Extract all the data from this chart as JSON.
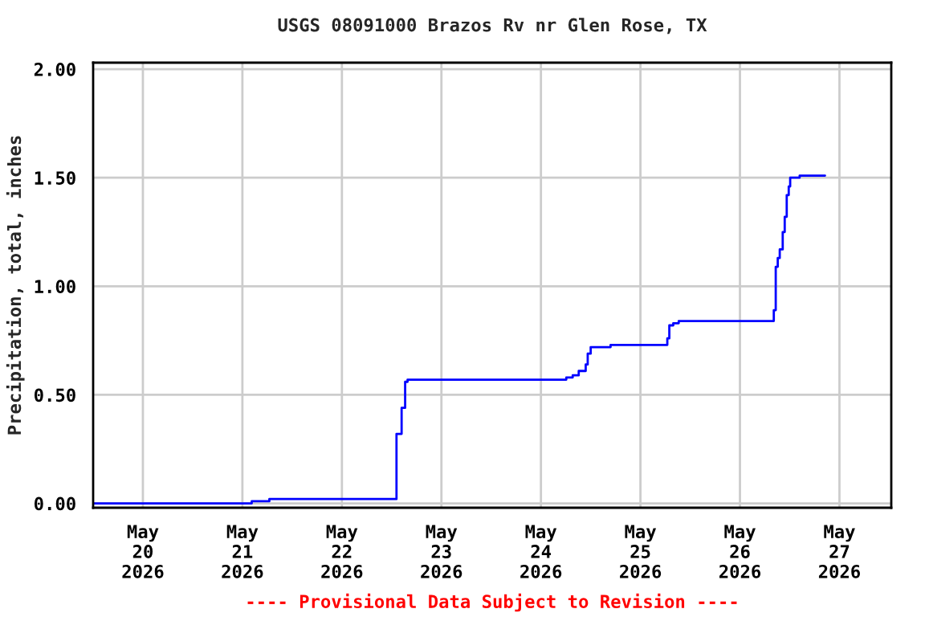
{
  "chart_data": {
    "type": "step",
    "title": "USGS 08091000 Brazos Rv nr Glen Rose, TX",
    "ylabel": "Precipitation, total, inches",
    "annotations": [
      "---- Provisional Data Subject to Revision ----"
    ],
    "x": [
      "2026-05-19T12:00",
      "2026-05-21T02:15",
      "2026-05-21T06:30",
      "2026-05-22T13:10",
      "2026-05-22T14:24",
      "2026-05-22T15:15",
      "2026-05-22T15:50",
      "2026-05-24T06:07",
      "2026-05-24T07:40",
      "2026-05-24T09:07",
      "2026-05-24T10:48",
      "2026-05-24T11:17",
      "2026-05-24T12:00",
      "2026-05-24T16:48",
      "2026-05-25T06:29",
      "2026-05-25T06:58",
      "2026-05-25T07:55",
      "2026-05-25T09:14",
      "2026-05-26T08:10",
      "2026-05-26T08:38",
      "2026-05-26T09:07",
      "2026-05-26T09:36",
      "2026-05-26T10:19",
      "2026-05-26T10:48",
      "2026-05-26T11:17",
      "2026-05-26T11:46",
      "2026-05-26T12:07",
      "2026-05-26T14:24",
      "2026-05-26T20:31"
    ],
    "series": [
      {
        "color": "#0000ff",
        "values": [
          0.0,
          0.01,
          0.02,
          0.32,
          0.44,
          0.56,
          0.57,
          0.58,
          0.59,
          0.61,
          0.64,
          0.69,
          0.72,
          0.73,
          0.76,
          0.82,
          0.83,
          0.84,
          0.89,
          1.09,
          1.13,
          1.17,
          1.25,
          1.32,
          1.42,
          1.46,
          1.5,
          1.51,
          1.51
        ]
      }
    ],
    "xlim": [
      "2026-05-19T12:00",
      "2026-05-27T12:30"
    ],
    "xticks": [
      {
        "value": "2026-05-20",
        "label": "May\n20\n2026"
      },
      {
        "value": "2026-05-21",
        "label": "May\n21\n2026"
      },
      {
        "value": "2026-05-22",
        "label": "May\n22\n2026"
      },
      {
        "value": "2026-05-23",
        "label": "May\n23\n2026"
      },
      {
        "value": "2026-05-24",
        "label": "May\n24\n2026"
      },
      {
        "value": "2026-05-25",
        "label": "May\n25\n2026"
      },
      {
        "value": "2026-05-26",
        "label": "May\n26\n2026"
      },
      {
        "value": "2026-05-27",
        "label": "May\n27\n2026"
      }
    ],
    "ylim": [
      -0.02,
      2.03
    ],
    "yticks": [
      {
        "value": 0,
        "label": "0.00"
      },
      {
        "value": 0.5,
        "label": "0.50"
      },
      {
        "value": 1.0,
        "label": "1.00"
      },
      {
        "value": 1.5,
        "label": "1.50"
      },
      {
        "value": 2.0,
        "label": "2.00"
      }
    ],
    "grid": true,
    "legend": false
  }
}
